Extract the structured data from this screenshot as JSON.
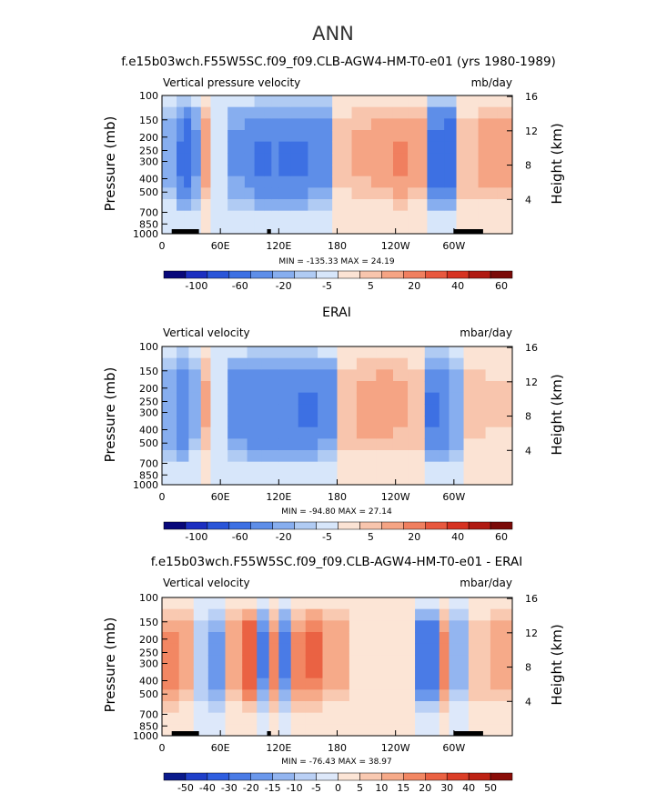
{
  "figure": {
    "main_title": "ANN"
  },
  "panels": [
    {
      "title": "f.e15b03wch.F55W5SC.f09_f09.CLB-AGW4-HM-T0-e01 (yrs 1980-1989)",
      "variable": "Vertical pressure velocity",
      "units": "mb/day",
      "ylabel": "Pressure (mb)",
      "y2label": "Height (km)",
      "stats": "MIN = -135.33   MAX =  24.19",
      "pressure_ticks": [
        "100",
        "150",
        "200",
        "250",
        "300",
        "400",
        "500",
        "700",
        "850",
        "1000"
      ],
      "height_ticks": [
        "16",
        "12",
        "8",
        "4"
      ],
      "lon_ticks": [
        "0",
        "60E",
        "120E",
        "180",
        "120W",
        "60W"
      ],
      "colorbar_labels": [
        "-100",
        "-60",
        "-20",
        "-5",
        "5",
        "20",
        "40",
        "60"
      ]
    },
    {
      "title": "ERAI",
      "variable": "Vertical velocity",
      "units": "mbar/day",
      "ylabel": "Pressure (mb)",
      "y2label": "Height (km)",
      "stats": "MIN = -94.80   MAX =  27.14",
      "pressure_ticks": [
        "100",
        "150",
        "200",
        "250",
        "300",
        "400",
        "500",
        "700",
        "850",
        "1000"
      ],
      "height_ticks": [
        "16",
        "12",
        "8",
        "4"
      ],
      "lon_ticks": [
        "0",
        "60E",
        "120E",
        "180",
        "120W",
        "60W"
      ],
      "colorbar_labels": [
        "-100",
        "-60",
        "-20",
        "-5",
        "5",
        "20",
        "40",
        "60"
      ]
    },
    {
      "title": "f.e15b03wch.F55W5SC.f09_f09.CLB-AGW4-HM-T0-e01 - ERAI",
      "variable": "Vertical velocity",
      "units": "mbar/day",
      "ylabel": "Pressure (mb)",
      "y2label": "Height (km)",
      "stats": "MIN = -76.43   MAX =  38.97",
      "pressure_ticks": [
        "100",
        "150",
        "200",
        "250",
        "300",
        "400",
        "500",
        "700",
        "850",
        "1000"
      ],
      "height_ticks": [
        "16",
        "12",
        "8",
        "4"
      ],
      "lon_ticks": [
        "0",
        "60E",
        "120E",
        "180",
        "120W",
        "60W"
      ],
      "colorbar_labels": [
        "-50",
        "-40",
        "-30",
        "-20",
        "-15",
        "-10",
        "-5",
        "0",
        "5",
        "10",
        "15",
        "20",
        "30",
        "40",
        "50"
      ]
    }
  ],
  "colors": {
    "field_palette": [
      "#08087a",
      "#1c2fc0",
      "#2a55d8",
      "#3d70e3",
      "#5e8ee8",
      "#87aeef",
      "#b0cbf3",
      "#d7e6fa",
      "#fbe3d4",
      "#f8c5ad",
      "#f5a484",
      "#f07f5f",
      "#e8583e",
      "#d63322",
      "#b01a12",
      "#7a0a08"
    ],
    "diff_palette": [
      "#0a1a8c",
      "#1f3fc9",
      "#2f5ee0",
      "#4a7be6",
      "#6b98ec",
      "#93b5f0",
      "#bad0f5",
      "#dde8fa",
      "#fce5d6",
      "#f9c9b1",
      "#f6aa89",
      "#f28763",
      "#ea6243",
      "#db3e27",
      "#bd2214",
      "#8a0d08"
    ],
    "topography": "#000000"
  },
  "chart_data": [
    {
      "type": "heatmap",
      "title": "f.e15b03wch.F55W5SC.f09_f09.CLB-AGW4-HM-T0-e01 (yrs 1980-1989)",
      "xlabel": "",
      "ylabel": "Pressure (mb)",
      "xlim": [
        0,
        360
      ],
      "ylim": [
        1000,
        100
      ],
      "yscale": "log",
      "z_units": "mb/day",
      "z_min": -135.33,
      "z_max": 24.19,
      "levels": [
        -100,
        -80,
        -60,
        -40,
        -20,
        -10,
        -5,
        0,
        5,
        10,
        20,
        30,
        40,
        50,
        60
      ],
      "longitude": [
        10,
        20,
        25,
        35,
        45,
        55,
        80,
        90,
        100,
        110,
        115,
        125,
        140,
        160,
        190,
        200,
        230,
        245,
        260,
        285,
        295,
        310,
        340,
        350
      ],
      "profile": [
        -15,
        -45,
        -60,
        -25,
        15,
        -5,
        -25,
        -30,
        -45,
        -45,
        -40,
        -45,
        -45,
        -35,
        8,
        12,
        18,
        22,
        15,
        -55,
        -60,
        10,
        15,
        18
      ]
    },
    {
      "type": "heatmap",
      "title": "ERAI",
      "xlabel": "",
      "ylabel": "Pressure (mb)",
      "xlim": [
        0,
        360
      ],
      "ylim": [
        1000,
        100
      ],
      "yscale": "log",
      "z_units": "mbar/day",
      "z_min": -94.8,
      "z_max": 27.14,
      "levels": [
        -100,
        -80,
        -60,
        -40,
        -20,
        -10,
        -5,
        0,
        5,
        10,
        20,
        30,
        40,
        50,
        60
      ],
      "longitude": [
        10,
        20,
        35,
        45,
        55,
        80,
        95,
        110,
        130,
        150,
        170,
        190,
        210,
        230,
        245,
        260,
        280,
        290,
        300,
        320,
        345
      ],
      "profile": [
        -20,
        -40,
        -15,
        12,
        -5,
        -30,
        -40,
        -40,
        -40,
        -45,
        -30,
        10,
        14,
        16,
        12,
        10,
        -45,
        -40,
        -20,
        8,
        6
      ]
    },
    {
      "type": "heatmap",
      "title": "f.e15b03wch.F55W5SC.f09_f09.CLB-AGW4-HM-T0-e01 - ERAI",
      "xlabel": "",
      "ylabel": "Pressure (mb)",
      "xlim": [
        0,
        360
      ],
      "ylim": [
        1000,
        100
      ],
      "yscale": "log",
      "z_units": "mbar/day",
      "z_min": -76.43,
      "z_max": 38.97,
      "levels": [
        -50,
        -40,
        -30,
        -20,
        -15,
        -10,
        -5,
        0,
        5,
        10,
        15,
        20,
        30,
        40,
        50
      ],
      "longitude": [
        10,
        25,
        40,
        55,
        75,
        90,
        105,
        115,
        125,
        140,
        155,
        175,
        210,
        240,
        280,
        290,
        300,
        330,
        345
      ],
      "profile": [
        20,
        15,
        -10,
        -20,
        15,
        30,
        -25,
        20,
        -25,
        20,
        25,
        15,
        5,
        5,
        -30,
        20,
        -15,
        10,
        15
      ]
    }
  ]
}
